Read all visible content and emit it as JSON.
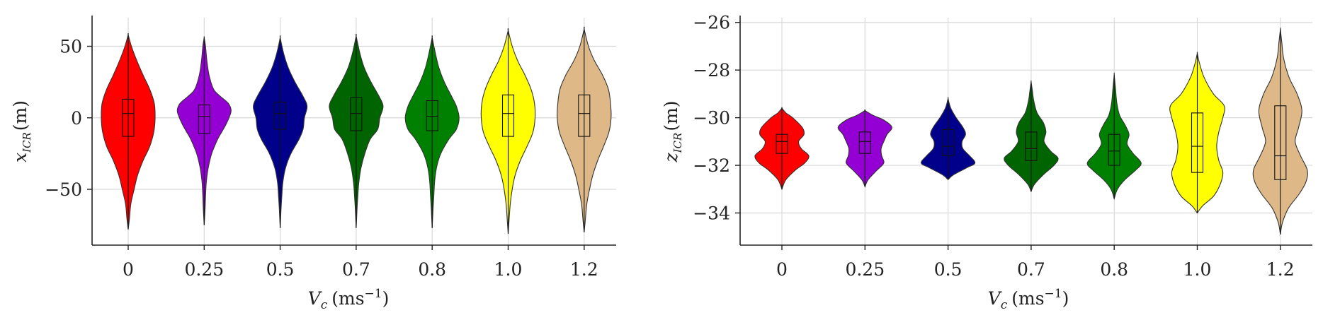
{
  "chart_data": [
    {
      "type": "violin",
      "categories": [
        "0",
        "0.25",
        "0.5",
        "0.7",
        "0.8",
        "1.0",
        "1.2"
      ],
      "colors": [
        "#ff0000",
        "#9400d3",
        "#00008b",
        "#006400",
        "#008000",
        "#ffff00",
        "#deb887"
      ],
      "xlabel_main": "V",
      "xlabel_sub": "c",
      "xlabel_unit": "(ms",
      "xlabel_exp": "−1",
      "xlabel_close": ")",
      "ylabel_main": "x",
      "ylabel_sub": "ICR",
      "ylabel_unit": "(m)",
      "ylim": [
        -89,
        70
      ],
      "yticks": [
        50,
        0,
        -50
      ],
      "ytick_labels": [
        "50",
        "0",
        "−50"
      ],
      "grid": true,
      "series": [
        {
          "category": "0",
          "min": -78,
          "max": 58,
          "q1": -13,
          "median": 3,
          "q3": 13,
          "profile": [
            [
              -78,
              0.0
            ],
            [
              -70,
              0.05
            ],
            [
              -60,
              0.1
            ],
            [
              -50,
              0.22
            ],
            [
              -40,
              0.35
            ],
            [
              -30,
              0.55
            ],
            [
              -20,
              0.8
            ],
            [
              -10,
              0.95
            ],
            [
              0,
              1.0
            ],
            [
              10,
              0.97
            ],
            [
              20,
              0.8
            ],
            [
              30,
              0.55
            ],
            [
              40,
              0.32
            ],
            [
              50,
              0.12
            ],
            [
              58,
              0.0
            ]
          ]
        },
        {
          "category": "0.25",
          "min": -75,
          "max": 56,
          "q1": -11,
          "median": 1,
          "q3": 9,
          "profile": [
            [
              -75,
              0.0
            ],
            [
              -65,
              0.03
            ],
            [
              -55,
              0.05
            ],
            [
              -45,
              0.08
            ],
            [
              -35,
              0.15
            ],
            [
              -25,
              0.28
            ],
            [
              -15,
              0.5
            ],
            [
              -10,
              0.65
            ],
            [
              -5,
              0.8
            ],
            [
              0,
              0.92
            ],
            [
              5,
              1.0
            ],
            [
              10,
              0.9
            ],
            [
              15,
              0.6
            ],
            [
              20,
              0.35
            ],
            [
              30,
              0.18
            ],
            [
              40,
              0.1
            ],
            [
              50,
              0.05
            ],
            [
              56,
              0.0
            ]
          ]
        },
        {
          "category": "0.5",
          "min": -77,
          "max": 56,
          "q1": -8,
          "median": 3,
          "q3": 11,
          "profile": [
            [
              -77,
              0.0
            ],
            [
              -65,
              0.03
            ],
            [
              -55,
              0.06
            ],
            [
              -45,
              0.1
            ],
            [
              -35,
              0.2
            ],
            [
              -25,
              0.4
            ],
            [
              -15,
              0.7
            ],
            [
              -8,
              0.85
            ],
            [
              0,
              0.9
            ],
            [
              8,
              1.0
            ],
            [
              15,
              0.85
            ],
            [
              25,
              0.55
            ],
            [
              35,
              0.3
            ],
            [
              45,
              0.13
            ],
            [
              56,
              0.0
            ]
          ]
        },
        {
          "category": "0.7",
          "min": -77,
          "max": 57,
          "q1": -9,
          "median": 3,
          "q3": 14,
          "profile": [
            [
              -77,
              0.0
            ],
            [
              -65,
              0.03
            ],
            [
              -55,
              0.06
            ],
            [
              -45,
              0.1
            ],
            [
              -35,
              0.18
            ],
            [
              -25,
              0.32
            ],
            [
              -15,
              0.52
            ],
            [
              -8,
              0.8
            ],
            [
              0,
              0.88
            ],
            [
              8,
              1.0
            ],
            [
              15,
              0.85
            ],
            [
              25,
              0.55
            ],
            [
              35,
              0.3
            ],
            [
              45,
              0.14
            ],
            [
              57,
              0.0
            ]
          ]
        },
        {
          "category": "0.8",
          "min": -77,
          "max": 56,
          "q1": -9,
          "median": 1,
          "q3": 12,
          "profile": [
            [
              -77,
              0.0
            ],
            [
              -65,
              0.03
            ],
            [
              -55,
              0.06
            ],
            [
              -45,
              0.09
            ],
            [
              -35,
              0.16
            ],
            [
              -25,
              0.32
            ],
            [
              -15,
              0.62
            ],
            [
              -8,
              0.9
            ],
            [
              0,
              1.0
            ],
            [
              8,
              0.9
            ],
            [
              15,
              0.72
            ],
            [
              25,
              0.45
            ],
            [
              35,
              0.25
            ],
            [
              45,
              0.12
            ],
            [
              56,
              0.0
            ]
          ]
        },
        {
          "category": "1.0",
          "min": -81,
          "max": 61,
          "q1": -13,
          "median": 3,
          "q3": 16,
          "profile": [
            [
              -81,
              0.0
            ],
            [
              -70,
              0.04
            ],
            [
              -60,
              0.08
            ],
            [
              -50,
              0.15
            ],
            [
              -40,
              0.26
            ],
            [
              -30,
              0.45
            ],
            [
              -20,
              0.7
            ],
            [
              -10,
              0.92
            ],
            [
              0,
              1.0
            ],
            [
              10,
              0.98
            ],
            [
              20,
              0.85
            ],
            [
              30,
              0.62
            ],
            [
              40,
              0.35
            ],
            [
              50,
              0.15
            ],
            [
              61,
              0.0
            ]
          ]
        },
        {
          "category": "1.2",
          "min": -80,
          "max": 62,
          "q1": -13,
          "median": 3,
          "q3": 16,
          "profile": [
            [
              -80,
              0.0
            ],
            [
              -70,
              0.05
            ],
            [
              -60,
              0.1
            ],
            [
              -50,
              0.2
            ],
            [
              -40,
              0.32
            ],
            [
              -30,
              0.5
            ],
            [
              -20,
              0.72
            ],
            [
              -10,
              0.92
            ],
            [
              0,
              1.0
            ],
            [
              10,
              0.98
            ],
            [
              20,
              0.9
            ],
            [
              30,
              0.68
            ],
            [
              40,
              0.38
            ],
            [
              50,
              0.16
            ],
            [
              62,
              0.0
            ]
          ]
        }
      ]
    },
    {
      "type": "violin",
      "categories": [
        "0",
        "0.25",
        "0.5",
        "0.7",
        "0.8",
        "1.0",
        "1.2"
      ],
      "colors": [
        "#ff0000",
        "#9400d3",
        "#00008b",
        "#006400",
        "#008000",
        "#ffff00",
        "#deb887"
      ],
      "xlabel_main": "V",
      "xlabel_sub": "c",
      "xlabel_unit": "(ms",
      "xlabel_exp": "−1",
      "xlabel_close": ")",
      "ylabel_main": "z",
      "ylabel_sub": "ICR",
      "ylabel_unit": "(m)",
      "ylim": [
        -35.35,
        -25.8
      ],
      "yticks": [
        -26,
        -28,
        -30,
        -32,
        -34
      ],
      "ytick_labels": [
        "−26",
        "−28",
        "−30",
        "−32",
        "−34"
      ],
      "grid": true,
      "series": [
        {
          "category": "0",
          "min": -33.0,
          "max": -29.6,
          "q1": -31.5,
          "median": -31.0,
          "q3": -30.7,
          "profile": [
            [
              -33.0,
              0.0
            ],
            [
              -32.6,
              0.15
            ],
            [
              -32.2,
              0.5
            ],
            [
              -31.9,
              0.85
            ],
            [
              -31.6,
              1.0
            ],
            [
              -31.3,
              0.72
            ],
            [
              -31.0,
              0.62
            ],
            [
              -30.7,
              0.82
            ],
            [
              -30.4,
              0.75
            ],
            [
              -30.0,
              0.4
            ],
            [
              -29.8,
              0.15
            ],
            [
              -29.6,
              0.0
            ]
          ]
        },
        {
          "category": "0.25",
          "min": -32.9,
          "max": -29.7,
          "q1": -31.5,
          "median": -31.0,
          "q3": -30.6,
          "profile": [
            [
              -32.9,
              0.0
            ],
            [
              -32.6,
              0.12
            ],
            [
              -32.2,
              0.45
            ],
            [
              -31.9,
              0.7
            ],
            [
              -31.6,
              0.62
            ],
            [
              -31.3,
              0.6
            ],
            [
              -31.0,
              0.7
            ],
            [
              -30.7,
              0.82
            ],
            [
              -30.4,
              1.0
            ],
            [
              -30.1,
              0.7
            ],
            [
              -29.9,
              0.3
            ],
            [
              -29.7,
              0.0
            ]
          ]
        },
        {
          "category": "0.5",
          "min": -32.6,
          "max": -29.2,
          "q1": -31.6,
          "median": -31.2,
          "q3": -30.5,
          "profile": [
            [
              -32.6,
              0.0
            ],
            [
              -32.4,
              0.2
            ],
            [
              -32.1,
              0.7
            ],
            [
              -31.9,
              1.0
            ],
            [
              -31.6,
              0.8
            ],
            [
              -31.3,
              0.55
            ],
            [
              -31.0,
              0.52
            ],
            [
              -30.7,
              0.65
            ],
            [
              -30.4,
              0.55
            ],
            [
              -30.0,
              0.3
            ],
            [
              -29.6,
              0.1
            ],
            [
              -29.2,
              0.0
            ]
          ]
        },
        {
          "category": "0.7",
          "min": -33.1,
          "max": -28.5,
          "q1": -31.8,
          "median": -31.3,
          "q3": -30.6,
          "profile": [
            [
              -33.1,
              0.0
            ],
            [
              -32.8,
              0.12
            ],
            [
              -32.4,
              0.45
            ],
            [
              -32.0,
              0.85
            ],
            [
              -31.7,
              1.0
            ],
            [
              -31.4,
              0.72
            ],
            [
              -31.0,
              0.48
            ],
            [
              -30.6,
              0.55
            ],
            [
              -30.2,
              0.45
            ],
            [
              -29.8,
              0.22
            ],
            [
              -29.3,
              0.1
            ],
            [
              -28.9,
              0.05
            ],
            [
              -28.5,
              0.0
            ]
          ]
        },
        {
          "category": "0.8",
          "min": -33.4,
          "max": -28.2,
          "q1": -32.0,
          "median": -31.4,
          "q3": -30.7,
          "profile": [
            [
              -33.4,
              0.0
            ],
            [
              -33.0,
              0.12
            ],
            [
              -32.6,
              0.4
            ],
            [
              -32.2,
              0.8
            ],
            [
              -31.9,
              1.0
            ],
            [
              -31.5,
              0.7
            ],
            [
              -31.1,
              0.48
            ],
            [
              -30.7,
              0.55
            ],
            [
              -30.3,
              0.4
            ],
            [
              -29.9,
              0.2
            ],
            [
              -29.4,
              0.1
            ],
            [
              -28.8,
              0.05
            ],
            [
              -28.2,
              0.0
            ]
          ]
        },
        {
          "category": "1.0",
          "min": -34.0,
          "max": -27.3,
          "q1": -32.3,
          "median": -31.2,
          "q3": -29.8,
          "profile": [
            [
              -34.0,
              0.0
            ],
            [
              -33.7,
              0.2
            ],
            [
              -33.3,
              0.6
            ],
            [
              -32.8,
              0.85
            ],
            [
              -32.3,
              0.95
            ],
            [
              -31.8,
              0.8
            ],
            [
              -31.2,
              0.72
            ],
            [
              -30.6,
              0.8
            ],
            [
              -30.0,
              0.95
            ],
            [
              -29.5,
              1.0
            ],
            [
              -29.0,
              0.6
            ],
            [
              -28.3,
              0.25
            ],
            [
              -27.7,
              0.08
            ],
            [
              -27.3,
              0.0
            ]
          ]
        },
        {
          "category": "1.2",
          "min": -34.9,
          "max": -26.3,
          "q1": -32.6,
          "median": -31.6,
          "q3": -29.5,
          "profile": [
            [
              -34.9,
              0.0
            ],
            [
              -34.4,
              0.08
            ],
            [
              -33.8,
              0.3
            ],
            [
              -33.2,
              0.7
            ],
            [
              -32.7,
              0.95
            ],
            [
              -32.2,
              1.0
            ],
            [
              -31.6,
              0.75
            ],
            [
              -31.0,
              0.55
            ],
            [
              -30.4,
              0.68
            ],
            [
              -29.7,
              0.8
            ],
            [
              -29.0,
              0.62
            ],
            [
              -28.3,
              0.32
            ],
            [
              -27.5,
              0.12
            ],
            [
              -26.8,
              0.05
            ],
            [
              -26.3,
              0.0
            ]
          ]
        }
      ]
    }
  ]
}
